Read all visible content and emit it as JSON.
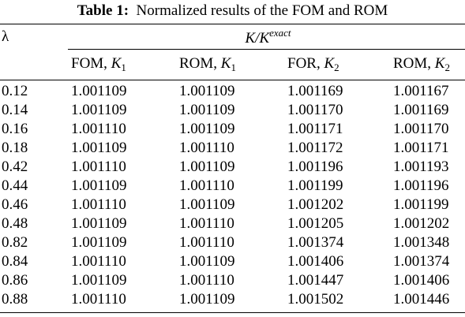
{
  "table": {
    "caption": {
      "label": "Table 1:",
      "text": "Normalized results of the FOM and ROM"
    },
    "header": {
      "lambda": "λ",
      "group": {
        "base": "K/K",
        "superscript": "exact"
      },
      "columns": [
        {
          "prefix": "FOM,",
          "symbol": "K",
          "subscript": "1"
        },
        {
          "prefix": "ROM,",
          "symbol": "K",
          "subscript": "1"
        },
        {
          "prefix": "FOR,",
          "symbol": "K",
          "subscript": "2"
        },
        {
          "prefix": "ROM,",
          "symbol": "K",
          "subscript": "2"
        }
      ]
    },
    "rows": [
      [
        "0.12",
        "1.001109",
        "1.001109",
        "1.001169",
        "1.001167"
      ],
      [
        "0.14",
        "1.001109",
        "1.001109",
        "1.001170",
        "1.001169"
      ],
      [
        "0.16",
        "1.001110",
        "1.001109",
        "1.001171",
        "1.001170"
      ],
      [
        "0.18",
        "1.001109",
        "1.001110",
        "1.001172",
        "1.001171"
      ],
      [
        "0.42",
        "1.001110",
        "1.001109",
        "1.001196",
        "1.001193"
      ],
      [
        "0.44",
        "1.001109",
        "1.001110",
        "1.001199",
        "1.001196"
      ],
      [
        "0.46",
        "1.001110",
        "1.001109",
        "1.001202",
        "1.001199"
      ],
      [
        "0.48",
        "1.001109",
        "1.001110",
        "1.001205",
        "1.001202"
      ],
      [
        "0.82",
        "1.001109",
        "1.001110",
        "1.001374",
        "1.001348"
      ],
      [
        "0.84",
        "1.001110",
        "1.001109",
        "1.001406",
        "1.001374"
      ],
      [
        "0.86",
        "1.001109",
        "1.001110",
        "1.001447",
        "1.001406"
      ],
      [
        "0.88",
        "1.001110",
        "1.001109",
        "1.001502",
        "1.001446"
      ]
    ]
  }
}
